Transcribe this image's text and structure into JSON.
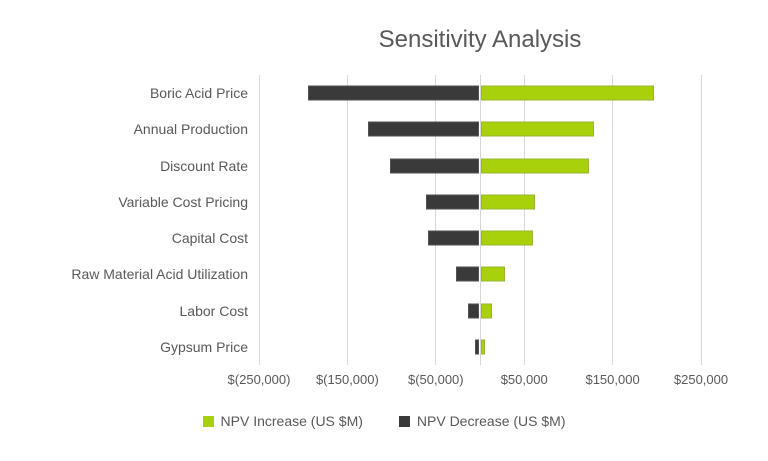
{
  "chart_data": {
    "type": "bar",
    "orientation": "horizontal",
    "title": "Sensitivity Analysis",
    "categories": [
      "Boric Acid Price",
      "Annual Production",
      "Discount Rate",
      "Variable Cost Pricing",
      "Capital Cost",
      "Raw Material Acid Utilization",
      "Labor Cost",
      "Gypsum Price"
    ],
    "series": [
      {
        "name": "NPV Increase (US $M)",
        "color": "#A8D10C",
        "values": [
          196000,
          128000,
          122000,
          61000,
          59000,
          27000,
          13000,
          5000
        ]
      },
      {
        "name": "NPV Decrease (US $M)",
        "color": "#3A3A3A",
        "values": [
          -194000,
          -126000,
          -101000,
          -60000,
          -58000,
          -26000,
          -12000,
          -4000
        ]
      }
    ],
    "xlim": [
      -250000,
      250000
    ],
    "x_ticks": [
      {
        "value": -250000,
        "label": "$(250,000)"
      },
      {
        "value": -150000,
        "label": "$(150,000)"
      },
      {
        "value": -50000,
        "label": "$(50,000)"
      },
      {
        "value": 50000,
        "label": "$50,000"
      },
      {
        "value": 150000,
        "label": "$150,000"
      },
      {
        "value": 250000,
        "label": "$250,000"
      }
    ],
    "grid": true,
    "legend_position": "bottom",
    "gridline_color": "#D9D9D9",
    "text_color": "#595959",
    "background": "#FFFFFF"
  }
}
